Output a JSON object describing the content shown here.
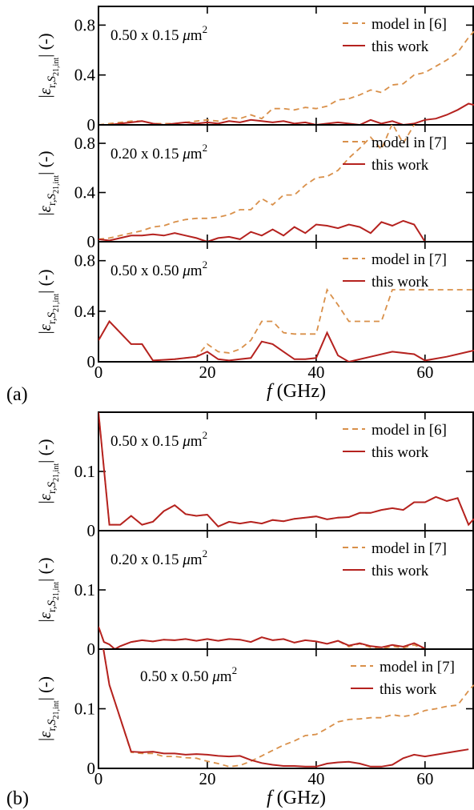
{
  "figure": {
    "panel_labels": [
      "(a)",
      "(b)"
    ],
    "xlabel": "f (GHz)",
    "ylabel": "|ε_{r,S21,int}| (-)",
    "xticks": [
      "0",
      "20",
      "40",
      "60"
    ],
    "colors": {
      "model": "#d9904a",
      "this_work": "#b5221f"
    }
  },
  "chart_data": [
    {
      "type": "line",
      "panel": "a",
      "annotation": "0.50 x 0.15 μm²",
      "xlim": [
        0,
        69
      ],
      "ylim": [
        0,
        0.95
      ],
      "yticks": [
        0,
        0.4,
        0.8
      ],
      "ytick_labels": [
        "0",
        "0.4",
        "0.8"
      ],
      "xlabel": "",
      "series": [
        {
          "name": "model in [6]",
          "style": "dashed",
          "x": [
            0,
            2,
            4,
            6,
            8,
            10,
            12,
            14,
            16,
            18,
            20,
            22,
            24,
            26,
            28,
            30,
            32,
            34,
            36,
            38,
            40,
            42,
            44,
            46,
            48,
            50,
            52,
            54,
            56,
            58,
            60,
            62,
            64,
            66,
            68,
            69
          ],
          "y": [
            0,
            0.01,
            0.02,
            0.03,
            0.03,
            0.01,
            0.01,
            0.01,
            0.02,
            0.03,
            0.04,
            0.03,
            0.06,
            0.05,
            0.08,
            0.05,
            0.13,
            0.13,
            0.12,
            0.14,
            0.13,
            0.15,
            0.2,
            0.21,
            0.24,
            0.28,
            0.26,
            0.32,
            0.33,
            0.4,
            0.42,
            0.47,
            0.52,
            0.58,
            0.7,
            0.75
          ]
        },
        {
          "name": "this work",
          "style": "solid",
          "x": [
            0,
            2,
            4,
            6,
            8,
            10,
            12,
            14,
            16,
            18,
            20,
            22,
            24,
            26,
            28,
            30,
            32,
            34,
            36,
            38,
            40,
            42,
            44,
            46,
            48,
            50,
            52,
            54,
            56,
            58,
            60,
            62,
            64,
            66,
            68,
            69
          ],
          "y": [
            0,
            0,
            0.01,
            0.02,
            0.03,
            0.01,
            0,
            0.01,
            0.02,
            0.01,
            0.02,
            0.01,
            0.03,
            0.02,
            0.04,
            0.03,
            0.02,
            0.03,
            0.01,
            0.02,
            0,
            0.01,
            0.02,
            0.01,
            0,
            0.04,
            0.01,
            0.03,
            0,
            0.01,
            0.04,
            0.05,
            0.08,
            0.12,
            0.17,
            0.16
          ]
        }
      ]
    },
    {
      "type": "line",
      "panel": "a",
      "annotation": "0.20 x 0.15 μm²",
      "xlim": [
        0,
        69
      ],
      "ylim": [
        0,
        0.95
      ],
      "yticks": [
        0,
        0.4,
        0.8
      ],
      "ytick_labels": [
        "0",
        "0.4",
        "0.8"
      ],
      "xlabel": "",
      "series": [
        {
          "name": "model in [7]",
          "style": "dashed",
          "x": [
            0,
            2,
            4,
            6,
            8,
            10,
            12,
            14,
            16,
            18,
            20,
            22,
            24,
            26,
            28,
            30,
            32,
            34,
            36,
            38,
            40,
            42,
            44,
            46,
            48,
            50,
            52,
            54,
            56,
            58,
            60
          ],
          "y": [
            0.02,
            0.03,
            0.05,
            0.07,
            0.09,
            0.12,
            0.13,
            0.16,
            0.18,
            0.19,
            0.19,
            0.2,
            0.22,
            0.26,
            0.26,
            0.35,
            0.3,
            0.38,
            0.38,
            0.46,
            0.52,
            0.53,
            0.58,
            0.68,
            0.76,
            0.85,
            0.75,
            0.96,
            0.8,
            0.95,
            1.05
          ]
        },
        {
          "name": "this work",
          "style": "solid",
          "x": [
            0,
            2,
            4,
            6,
            8,
            10,
            12,
            14,
            16,
            18,
            20,
            22,
            24,
            26,
            28,
            30,
            32,
            34,
            36,
            38,
            40,
            42,
            44,
            46,
            48,
            50,
            52,
            54,
            56,
            58,
            60
          ],
          "y": [
            0.02,
            0.01,
            0.03,
            0.05,
            0.05,
            0.06,
            0.05,
            0.07,
            0.05,
            0.03,
            0,
            0.03,
            0.04,
            0.02,
            0.08,
            0.05,
            0.1,
            0.05,
            0.12,
            0.07,
            0.14,
            0.13,
            0.11,
            0.14,
            0.12,
            0.07,
            0.16,
            0.13,
            0.17,
            0.14,
            0
          ]
        }
      ]
    },
    {
      "type": "line",
      "panel": "a",
      "annotation": "0.50 x 0.50 μm²",
      "xlim": [
        0,
        69
      ],
      "ylim": [
        0,
        0.95
      ],
      "yticks": [
        0,
        0.4,
        0.8
      ],
      "ytick_labels": [
        "0",
        "0.4",
        "0.8"
      ],
      "xlabel": "f (GHz)",
      "series": [
        {
          "name": "model in [7]",
          "style": "dashed",
          "x": [
            0,
            2,
            4,
            6,
            8,
            10,
            14,
            18,
            20,
            22,
            24,
            26,
            28,
            30,
            32,
            34,
            36,
            38,
            40,
            42,
            44,
            46,
            50,
            52,
            54,
            56,
            60,
            64,
            68,
            69
          ],
          "y": [
            0.17,
            0.32,
            0.23,
            0.14,
            0.14,
            0.01,
            0.02,
            0.04,
            0.14,
            0.08,
            0.07,
            0.1,
            0.17,
            0.32,
            0.32,
            0.23,
            0.22,
            0.22,
            0.22,
            0.57,
            0.45,
            0.32,
            0.32,
            0.32,
            0.57,
            0.57,
            0.57,
            0.57,
            0.57,
            0.57
          ]
        },
        {
          "name": "this work",
          "style": "solid",
          "x": [
            0,
            2,
            4,
            6,
            8,
            10,
            14,
            18,
            20,
            22,
            24,
            26,
            28,
            30,
            32,
            34,
            36,
            38,
            40,
            42,
            44,
            46,
            50,
            54,
            58,
            60,
            64,
            68,
            69
          ],
          "y": [
            0.17,
            0.32,
            0.23,
            0.14,
            0.14,
            0.01,
            0.02,
            0.04,
            0.08,
            0.02,
            0.01,
            0.02,
            0.03,
            0.16,
            0.14,
            0.08,
            0.02,
            0.02,
            0.03,
            0.23,
            0.05,
            0,
            0.04,
            0.08,
            0.06,
            0.01,
            0.04,
            0.08,
            0.09
          ]
        }
      ]
    },
    {
      "type": "line",
      "panel": "b",
      "annotation": "0.50 x 0.15 μm²",
      "xlim": [
        0,
        69
      ],
      "ylim": [
        0,
        0.2
      ],
      "yticks": [
        0,
        0.1
      ],
      "ytick_labels": [
        "0",
        "0.1"
      ],
      "xlabel": "",
      "series": [
        {
          "name": "model in [6]",
          "style": "dashed",
          "x": [
            0,
            2,
            4,
            6,
            8,
            10,
            12,
            14,
            16,
            18,
            20,
            22,
            24,
            26,
            28,
            30,
            32,
            34,
            36,
            38,
            40,
            42,
            44,
            46,
            48,
            50,
            52,
            54,
            56,
            58,
            60,
            62,
            64,
            66,
            68,
            69
          ],
          "y": [
            0.2,
            0.01,
            0.01,
            0.025,
            0.01,
            0.015,
            0.033,
            0.043,
            0.028,
            0.025,
            0.027,
            0.007,
            0.015,
            0.012,
            0.015,
            0.012,
            0.018,
            0.016,
            0.02,
            0.022,
            0.024,
            0.019,
            0.022,
            0.023,
            0.03,
            0.03,
            0.035,
            0.038,
            0.035,
            0.048,
            0.048,
            0.057,
            0.05,
            0.055,
            0.01,
            0.02
          ]
        },
        {
          "name": "this work",
          "style": "solid",
          "x": [
            0,
            2,
            4,
            6,
            8,
            10,
            12,
            14,
            16,
            18,
            20,
            22,
            24,
            26,
            28,
            30,
            32,
            34,
            36,
            38,
            40,
            42,
            44,
            46,
            48,
            50,
            52,
            54,
            56,
            58,
            60,
            62,
            64,
            66,
            68,
            69
          ],
          "y": [
            0.2,
            0.01,
            0.01,
            0.025,
            0.01,
            0.015,
            0.033,
            0.043,
            0.028,
            0.025,
            0.027,
            0.007,
            0.015,
            0.012,
            0.015,
            0.012,
            0.018,
            0.016,
            0.02,
            0.022,
            0.024,
            0.019,
            0.022,
            0.023,
            0.03,
            0.03,
            0.035,
            0.038,
            0.035,
            0.048,
            0.048,
            0.057,
            0.05,
            0.055,
            0.01,
            0.02
          ]
        }
      ]
    },
    {
      "type": "line",
      "panel": "b",
      "annotation": "0.20 x 0.15 μm²",
      "xlim": [
        0,
        69
      ],
      "ylim": [
        0,
        0.2
      ],
      "yticks": [
        0,
        0.1
      ],
      "ytick_labels": [
        "0",
        "0.1"
      ],
      "xlabel": "",
      "series": [
        {
          "name": "model in [7]",
          "style": "dashed",
          "x": [
            0,
            1,
            2,
            3,
            4,
            6,
            8,
            10,
            12,
            14,
            16,
            18,
            20,
            22,
            24,
            26,
            28,
            30,
            32,
            34,
            36,
            38,
            40,
            42,
            44,
            46,
            48,
            50,
            52,
            54,
            56,
            58,
            60
          ],
          "y": [
            0.038,
            0.012,
            0.008,
            0,
            0.005,
            0.012,
            0.015,
            0.013,
            0.016,
            0.015,
            0.017,
            0.014,
            0.017,
            0.014,
            0.017,
            0.016,
            0.012,
            0.02,
            0.015,
            0.017,
            0.011,
            0.015,
            0.013,
            0.009,
            0.014,
            0.004,
            0.009,
            0.003,
            0,
            0.005,
            0.002,
            0.007,
            0
          ]
        },
        {
          "name": "this work",
          "style": "solid",
          "x": [
            0,
            1,
            2,
            3,
            4,
            6,
            8,
            10,
            12,
            14,
            16,
            18,
            20,
            22,
            24,
            26,
            28,
            30,
            32,
            34,
            36,
            38,
            40,
            42,
            44,
            46,
            48,
            50,
            52,
            54,
            56,
            58,
            60
          ],
          "y": [
            0.038,
            0.012,
            0.008,
            0,
            0.005,
            0.012,
            0.015,
            0.013,
            0.016,
            0.015,
            0.017,
            0.014,
            0.017,
            0.014,
            0.017,
            0.016,
            0.012,
            0.02,
            0.015,
            0.017,
            0.011,
            0.015,
            0.013,
            0.009,
            0.014,
            0.006,
            0.01,
            0.005,
            0.003,
            0.007,
            0.004,
            0.01,
            0.001
          ]
        }
      ]
    },
    {
      "type": "line",
      "panel": "b",
      "annotation": "0.50 x 0.50 μm²",
      "xlim": [
        0,
        69
      ],
      "ylim": [
        0,
        0.2
      ],
      "yticks": [
        0,
        0.1
      ],
      "ytick_labels": [
        "0",
        "0.1"
      ],
      "xlabel": "f (GHz)",
      "series": [
        {
          "name": "model in [7]",
          "style": "dashed",
          "x": [
            0,
            2,
            6,
            8,
            10,
            12,
            14,
            16,
            18,
            20,
            22,
            24,
            26,
            28,
            30,
            32,
            34,
            36,
            38,
            40,
            42,
            44,
            46,
            48,
            50,
            52,
            54,
            56,
            58,
            60,
            62,
            64,
            66,
            68,
            69
          ],
          "y": [
            0.25,
            0.14,
            0.027,
            0.025,
            0.025,
            0.02,
            0.02,
            0.018,
            0.017,
            0.012,
            0.008,
            0.003,
            0.005,
            0.012,
            0.021,
            0.03,
            0.039,
            0.046,
            0.055,
            0.057,
            0.067,
            0.078,
            0.082,
            0.083,
            0.085,
            0.085,
            0.09,
            0.087,
            0.09,
            0.097,
            0.1,
            0.104,
            0.106,
            0.13,
            0.14
          ]
        },
        {
          "name": "this work",
          "style": "solid",
          "x": [
            0,
            2,
            6,
            8,
            10,
            12,
            14,
            16,
            18,
            20,
            22,
            24,
            26,
            28,
            30,
            32,
            34,
            36,
            38,
            40,
            42,
            44,
            46,
            48,
            50,
            52,
            54,
            56,
            58,
            60,
            62,
            64,
            66,
            68
          ],
          "y": [
            0.25,
            0.14,
            0.028,
            0.027,
            0.028,
            0.025,
            0.025,
            0.023,
            0.024,
            0.023,
            0.021,
            0.02,
            0.021,
            0.014,
            0.009,
            0.006,
            0.004,
            0.004,
            0.003,
            0.003,
            0.008,
            0.01,
            0.011,
            0.008,
            0.003,
            0.003,
            0.006,
            0.017,
            0.023,
            0.02,
            0.023,
            0.026,
            0.029,
            0.032
          ]
        }
      ]
    }
  ]
}
